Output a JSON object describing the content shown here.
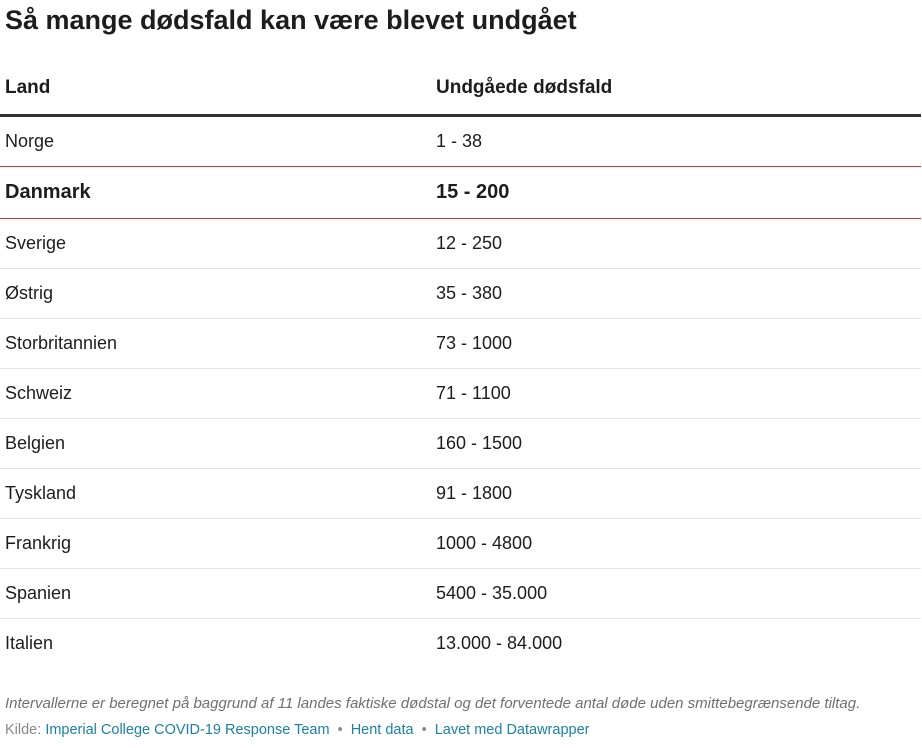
{
  "title": "Så mange dødsfald kan være blevet undgået",
  "table": {
    "headers": [
      "Land",
      "Undgåede dødsfald"
    ],
    "rows": [
      {
        "land": "Norge",
        "value": "1 - 38",
        "highlight": false
      },
      {
        "land": "Danmark",
        "value": "15 - 200",
        "highlight": true
      },
      {
        "land": "Sverige",
        "value": "12 - 250",
        "highlight": false
      },
      {
        "land": "Østrig",
        "value": "35 - 380",
        "highlight": false
      },
      {
        "land": "Storbritannien",
        "value": "73 - 1000",
        "highlight": false
      },
      {
        "land": "Schweiz",
        "value": "71 - 1100",
        "highlight": false
      },
      {
        "land": "Belgien",
        "value": "160 - 1500",
        "highlight": false
      },
      {
        "land": "Tyskland",
        "value": "91 - 1800",
        "highlight": false
      },
      {
        "land": "Frankrig",
        "value": "1000 - 4800",
        "highlight": false
      },
      {
        "land": "Spanien",
        "value": "5400 - 35.000",
        "highlight": false
      },
      {
        "land": "Italien",
        "value": "13.000 - 84.000",
        "highlight": false
      }
    ]
  },
  "notes": "Intervallerne er beregnet på baggrund af 11 landes faktiske dødstal og det forventede antal døde uden smittebegrænsende tiltag.",
  "footer": {
    "source_label": "Kilde:",
    "source_link": "Imperial College COVID-19 Response Team",
    "separator": "•",
    "get_data": "Hent data",
    "made_with": "Lavet med Datawrapper"
  },
  "colors": {
    "highlight_border": "#c83737",
    "header_border": "#333333",
    "row_border": "#e5e5e5",
    "link": "#1d81a2"
  }
}
